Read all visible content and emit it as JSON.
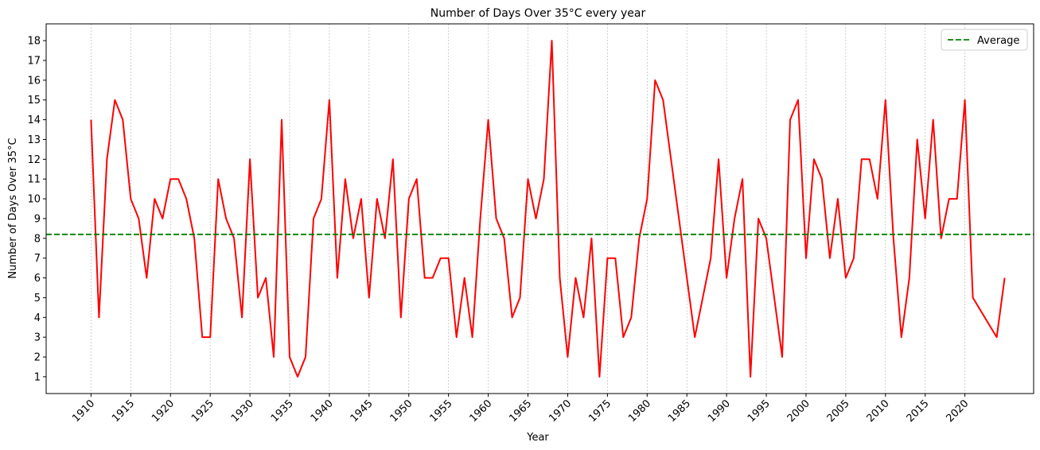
{
  "chart_data": {
    "type": "line",
    "title": "Number of Days Over 35°C every year",
    "xlabel": "Year",
    "ylabel": "Number of Days Over 35°C",
    "xlim": [
      1904.35,
      2028.65
    ],
    "ylim": [
      0.15,
      18.85
    ],
    "x_ticks": [
      1910,
      1915,
      1920,
      1925,
      1930,
      1935,
      1940,
      1945,
      1950,
      1955,
      1960,
      1965,
      1970,
      1975,
      1980,
      1985,
      1990,
      1995,
      2000,
      2005,
      2010,
      2015,
      2020
    ],
    "y_ticks": [
      1,
      2,
      3,
      4,
      5,
      6,
      7,
      8,
      9,
      10,
      11,
      12,
      13,
      14,
      15,
      16,
      17,
      18
    ],
    "vertical_grid": true,
    "legend": {
      "position": "top-right",
      "entries": [
        {
          "label": "Average",
          "style": "dashed",
          "color": "#008000"
        }
      ]
    },
    "series": [
      {
        "name": "Days over 35°C",
        "color": "#ff0000",
        "points": [
          [
            1910,
            14
          ],
          [
            1911,
            4
          ],
          [
            1912,
            12
          ],
          [
            1913,
            15
          ],
          [
            1914,
            14
          ],
          [
            1915,
            10
          ],
          [
            1916,
            9
          ],
          [
            1917,
            6
          ],
          [
            1918,
            10
          ],
          [
            1919,
            9
          ],
          [
            1920,
            11
          ],
          [
            1921,
            11
          ],
          [
            1922,
            10
          ],
          [
            1923,
            8
          ],
          [
            1924,
            3
          ],
          [
            1925,
            3
          ],
          [
            1926,
            11
          ],
          [
            1927,
            9
          ],
          [
            1928,
            8
          ],
          [
            1929,
            4
          ],
          [
            1930,
            12
          ],
          [
            1931,
            5
          ],
          [
            1932,
            6
          ],
          [
            1933,
            2
          ],
          [
            1934,
            14
          ],
          [
            1935,
            2
          ],
          [
            1936,
            1
          ],
          [
            1937,
            2
          ],
          [
            1938,
            9
          ],
          [
            1939,
            10
          ],
          [
            1940,
            15
          ],
          [
            1941,
            6
          ],
          [
            1942,
            11
          ],
          [
            1943,
            8
          ],
          [
            1944,
            10
          ],
          [
            1945,
            5
          ],
          [
            1946,
            10
          ],
          [
            1947,
            8
          ],
          [
            1948,
            12
          ],
          [
            1949,
            4
          ],
          [
            1950,
            10
          ],
          [
            1951,
            11
          ],
          [
            1952,
            6
          ],
          [
            1953,
            6
          ],
          [
            1954,
            7
          ],
          [
            1955,
            7
          ],
          [
            1956,
            3
          ],
          [
            1957,
            6
          ],
          [
            1958,
            3
          ],
          [
            1959,
            9
          ],
          [
            1960,
            14
          ],
          [
            1961,
            9
          ],
          [
            1962,
            8
          ],
          [
            1963,
            4
          ],
          [
            1964,
            5
          ],
          [
            1965,
            11
          ],
          [
            1966,
            9
          ],
          [
            1967,
            11
          ],
          [
            1968,
            18
          ],
          [
            1969,
            6
          ],
          [
            1970,
            2
          ],
          [
            1971,
            6
          ],
          [
            1972,
            4
          ],
          [
            1973,
            8
          ],
          [
            1974,
            1
          ],
          [
            1975,
            7
          ],
          [
            1976,
            7
          ],
          [
            1977,
            3
          ],
          [
            1978,
            4
          ],
          [
            1979,
            8
          ],
          [
            1980,
            10
          ],
          [
            1981,
            16
          ],
          [
            1982,
            15
          ],
          [
            1986,
            3
          ],
          [
            1988,
            7
          ],
          [
            1989,
            12
          ],
          [
            1990,
            6
          ],
          [
            1991,
            9
          ],
          [
            1992,
            11
          ],
          [
            1993,
            1
          ],
          [
            1994,
            9
          ],
          [
            1995,
            8
          ],
          [
            1997,
            2
          ],
          [
            1998,
            14
          ],
          [
            1999,
            15
          ],
          [
            2000,
            7
          ],
          [
            2001,
            12
          ],
          [
            2002,
            11
          ],
          [
            2003,
            7
          ],
          [
            2004,
            10
          ],
          [
            2005,
            6
          ],
          [
            2006,
            7
          ],
          [
            2007,
            12
          ],
          [
            2008,
            12
          ],
          [
            2009,
            10
          ],
          [
            2010,
            15
          ],
          [
            2011,
            8
          ],
          [
            2012,
            3
          ],
          [
            2013,
            6
          ],
          [
            2014,
            13
          ],
          [
            2015,
            9
          ],
          [
            2016,
            14
          ],
          [
            2017,
            8
          ],
          [
            2018,
            10
          ],
          [
            2019,
            10
          ],
          [
            2020,
            15
          ],
          [
            2021,
            5
          ],
          [
            2024,
            3
          ],
          [
            2025,
            6
          ]
        ]
      },
      {
        "name": "Average",
        "color": "#008000",
        "style": "dashed",
        "value": 8.2
      }
    ]
  }
}
